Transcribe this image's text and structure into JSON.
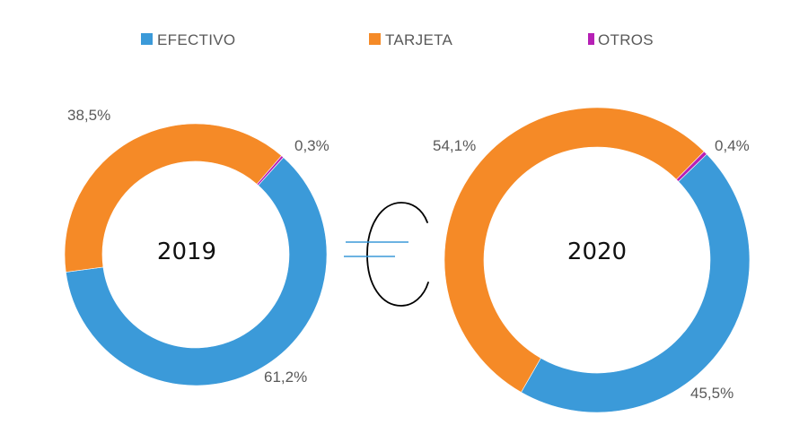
{
  "chart_data": [
    {
      "type": "donut",
      "title": "2019",
      "categories": [
        "EFECTIVO",
        "TARJETA",
        "OTROS"
      ],
      "values": [
        61.2,
        38.5,
        0.3
      ],
      "labels": [
        "61,2%",
        "38,5%",
        "0,3%"
      ]
    },
    {
      "type": "donut",
      "title": "2020",
      "categories": [
        "EFECTIVO",
        "TARJETA",
        "OTROS"
      ],
      "values": [
        45.5,
        54.1,
        0.4
      ],
      "labels": [
        "45,5%",
        "54,1%",
        "0,4%"
      ]
    }
  ],
  "legend": {
    "placement": "top",
    "items": [
      {
        "label": "EFECTIVO",
        "color": "#3b9ad9"
      },
      {
        "label": "TARJETA",
        "color": "#f58a27"
      },
      {
        "label": "OTROS",
        "color": "#b620b5"
      }
    ]
  },
  "colors": {
    "EFECTIVO": "#3b9ad9",
    "TARJETA": "#f58a27",
    "OTROS": "#b620b5"
  },
  "center_icon": "euro-icon"
}
